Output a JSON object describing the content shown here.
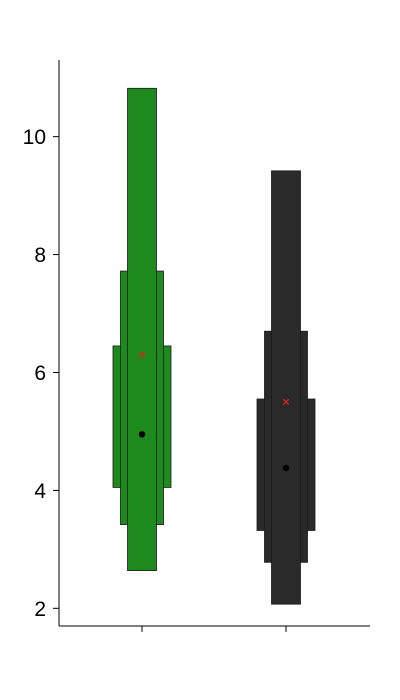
{
  "chart_data": {
    "type": "letter-value boxen",
    "title": "",
    "xlabel": "",
    "ylabel": "",
    "categories": [
      "",
      ""
    ],
    "ylim": [
      1.7,
      11.3
    ],
    "yticks": [
      2,
      4,
      6,
      8,
      10
    ],
    "ytick_labels": [
      "2",
      "4",
      "6",
      "8",
      "10"
    ],
    "grid": false,
    "legend": "none",
    "series": [
      {
        "color": "#1e8a1e",
        "median": 4.95,
        "mean": 6.3,
        "boxes": [
          {
            "low": 4.05,
            "high": 6.45
          },
          {
            "low": 3.42,
            "high": 7.72
          },
          {
            "low": 2.64,
            "high": 10.82
          }
        ]
      },
      {
        "color": "#2a2a2a",
        "median": 4.38,
        "mean": 5.5,
        "boxes": [
          {
            "low": 3.32,
            "high": 5.55
          },
          {
            "low": 2.78,
            "high": 6.7
          },
          {
            "low": 2.07,
            "high": 9.42
          }
        ]
      }
    ],
    "median_marker_color": "#000000",
    "mean_marker_color": "#e8201a"
  }
}
